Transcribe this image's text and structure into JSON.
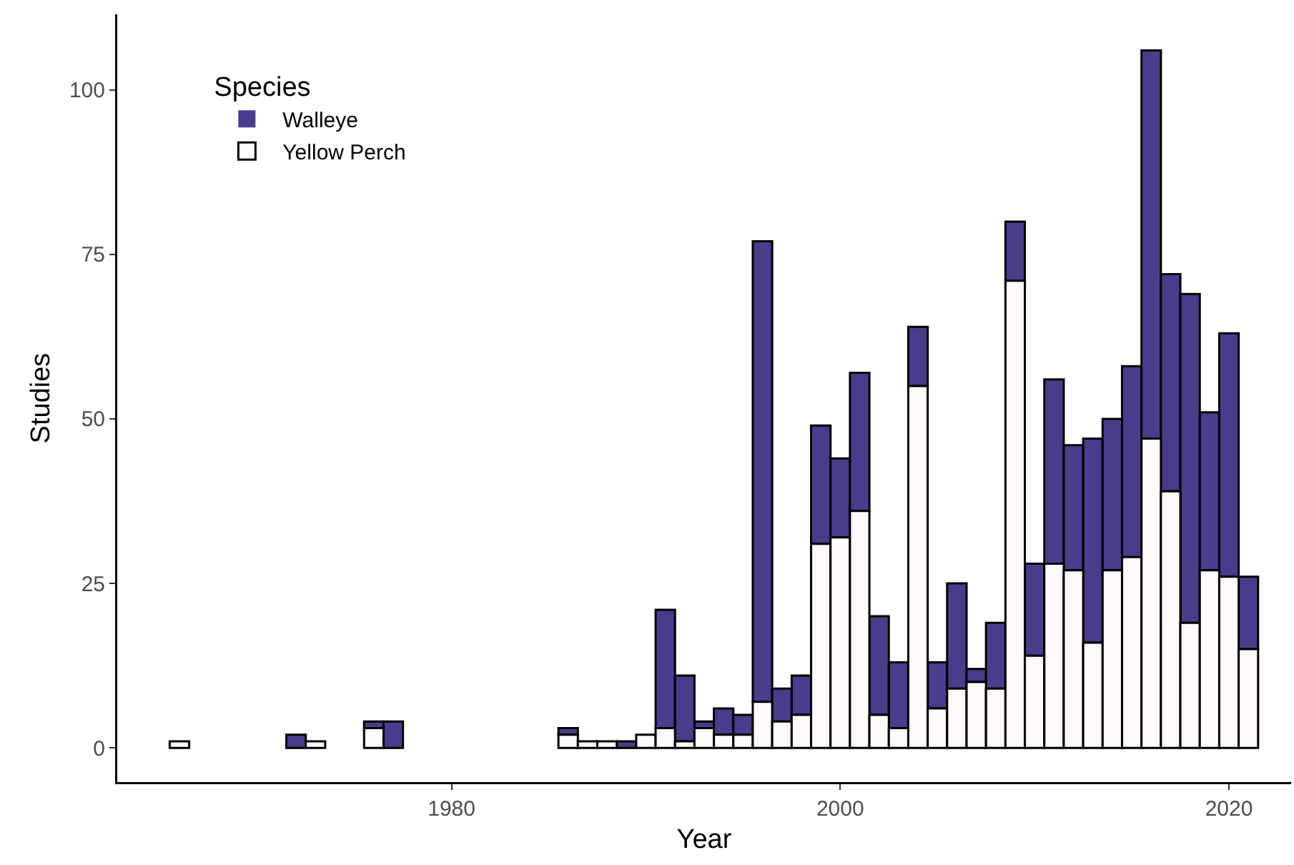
{
  "chart_data": {
    "type": "bar",
    "stacked": true,
    "xlabel": "Year",
    "ylabel": "Studies",
    "legend_title": "Species",
    "legend": "top left",
    "grid": false,
    "x": [
      1966,
      1967,
      1968,
      1969,
      1970,
      1971,
      1972,
      1973,
      1974,
      1975,
      1976,
      1977,
      1978,
      1979,
      1980,
      1981,
      1982,
      1983,
      1984,
      1985,
      1986,
      1987,
      1988,
      1989,
      1990,
      1991,
      1992,
      1993,
      1994,
      1995,
      1996,
      1997,
      1998,
      1999,
      2000,
      2001,
      2002,
      2003,
      2004,
      2005,
      2006,
      2007,
      2008,
      2009,
      2010,
      2011,
      2012,
      2013,
      2014,
      2015,
      2016,
      2017,
      2018,
      2019,
      2020,
      2021
    ],
    "series": [
      {
        "name": "Yellow Perch",
        "color": "#fffafa",
        "values": [
          1,
          0,
          0,
          0,
          0,
          0,
          0,
          1,
          0,
          0,
          3,
          0,
          0,
          0,
          0,
          0,
          0,
          0,
          0,
          0,
          2,
          1,
          1,
          0,
          2,
          3,
          1,
          3,
          2,
          2,
          7,
          4,
          5,
          31,
          32,
          36,
          5,
          3,
          55,
          6,
          9,
          10,
          9,
          71,
          14,
          28,
          27,
          16,
          27,
          29,
          47,
          39,
          19,
          27,
          26,
          15
        ]
      },
      {
        "name": "Walleye",
        "color": "#483d8b",
        "values": [
          0,
          0,
          0,
          0,
          0,
          0,
          2,
          0,
          0,
          0,
          1,
          4,
          0,
          0,
          0,
          0,
          0,
          0,
          0,
          0,
          1,
          0,
          0,
          1,
          0,
          18,
          10,
          1,
          4,
          3,
          70,
          5,
          6,
          18,
          12,
          21,
          15,
          10,
          9,
          7,
          16,
          2,
          10,
          9,
          14,
          28,
          19,
          31,
          23,
          29,
          59,
          33,
          50,
          24,
          37,
          11
        ]
      }
    ],
    "xlim": [
      1962.8,
      2023.2
    ],
    "xticks": [
      1980,
      2000,
      2020
    ],
    "ylim": [
      -5.2,
      111.5
    ],
    "yticks": [
      0,
      25,
      50,
      75,
      100
    ]
  }
}
